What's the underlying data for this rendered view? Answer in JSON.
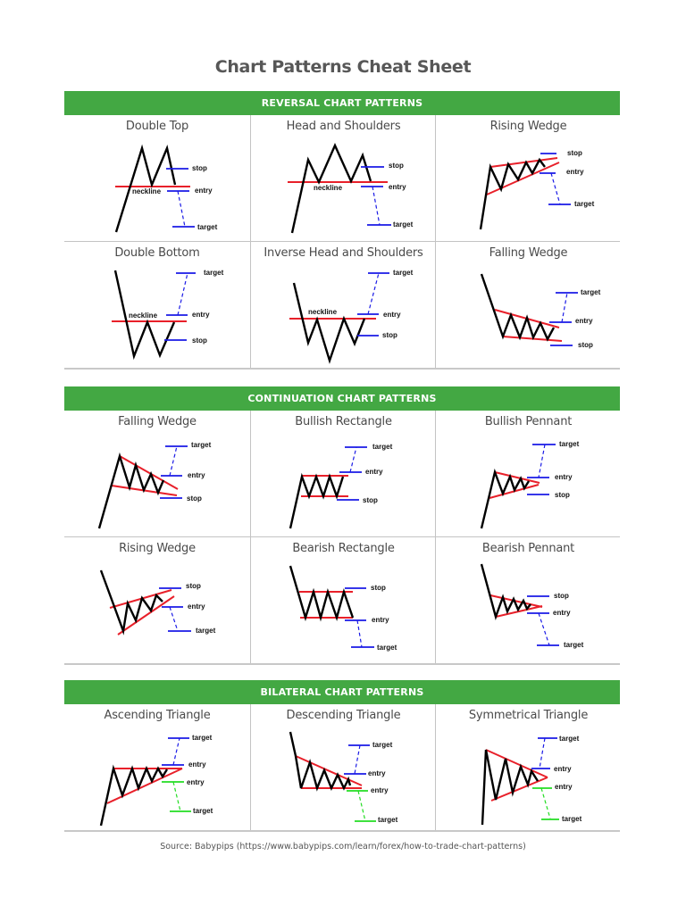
{
  "title": "Chart Patterns Cheat Sheet",
  "colors": {
    "header_green": "#43a843",
    "pattern_line": "#e8202a",
    "level_blue": "#1a1ae6",
    "level_green": "#22dd22",
    "price_line": "#000000"
  },
  "sections": [
    {
      "header": "REVERSAL CHART PATTERNS",
      "patterns": [
        {
          "name": "Double Top",
          "labels": [
            "neckline",
            "stop",
            "entry",
            "target"
          ]
        },
        {
          "name": "Head and Shoulders",
          "labels": [
            "neckline",
            "stop",
            "entry",
            "target"
          ]
        },
        {
          "name": "Rising Wedge",
          "labels": [
            "stop",
            "entry",
            "target"
          ]
        },
        {
          "name": "Double Bottom",
          "labels": [
            "neckline",
            "target",
            "entry",
            "stop"
          ]
        },
        {
          "name": "Inverse Head and Shoulders",
          "labels": [
            "neckline",
            "target",
            "entry",
            "stop"
          ]
        },
        {
          "name": "Falling Wedge",
          "labels": [
            "target",
            "entry",
            "stop"
          ]
        }
      ]
    },
    {
      "header": "CONTINUATION CHART PATTERNS",
      "patterns": [
        {
          "name": "Falling Wedge",
          "labels": [
            "target",
            "entry",
            "stop"
          ]
        },
        {
          "name": "Bullish Rectangle",
          "labels": [
            "target",
            "entry",
            "stop"
          ]
        },
        {
          "name": "Bullish Pennant",
          "labels": [
            "target",
            "entry",
            "stop"
          ]
        },
        {
          "name": "Rising Wedge",
          "labels": [
            "stop",
            "entry",
            "target"
          ]
        },
        {
          "name": "Bearish Rectangle",
          "labels": [
            "stop",
            "entry",
            "target"
          ]
        },
        {
          "name": "Bearish Pennant",
          "labels": [
            "stop",
            "entry",
            "target"
          ]
        }
      ]
    },
    {
      "header": "BILATERAL CHART PATTERNS",
      "patterns": [
        {
          "name": "Ascending Triangle",
          "labels": [
            "target",
            "entry",
            "entry",
            "target"
          ]
        },
        {
          "name": "Descending Triangle",
          "labels": [
            "target",
            "entry",
            "entry",
            "target"
          ]
        },
        {
          "name": "Symmetrical Triangle",
          "labels": [
            "target",
            "entry",
            "entry",
            "target"
          ]
        }
      ]
    }
  ],
  "source": "Source: Babypips (https://www.babypips.com/learn/forex/how-to-trade-chart-patterns)"
}
